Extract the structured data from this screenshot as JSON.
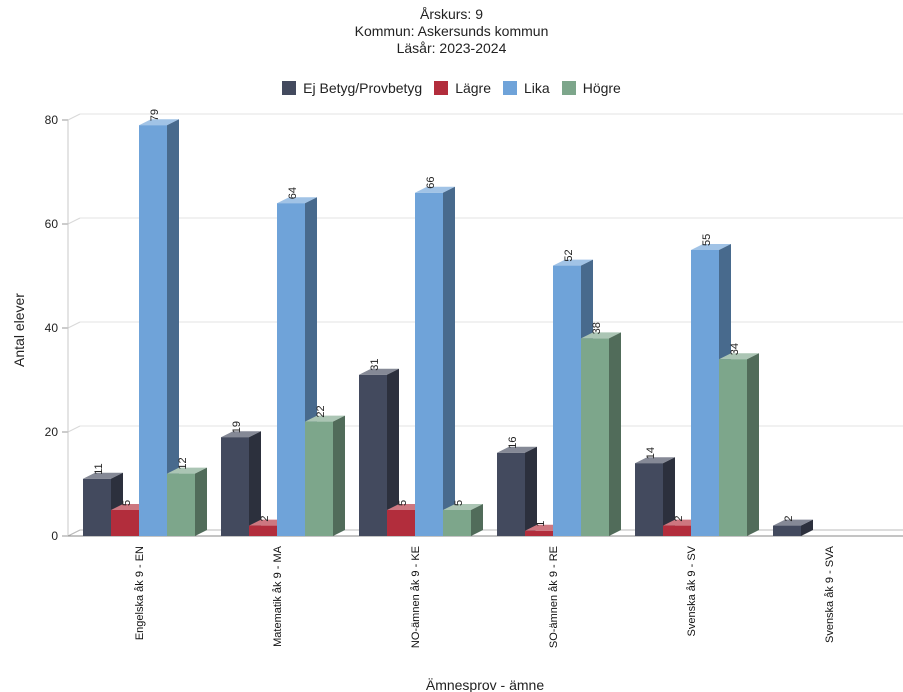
{
  "chart_data": {
    "type": "bar",
    "title_lines": [
      "Årskurs: 9",
      "Kommun: Askersunds kommun",
      "Läsår: 2023-2024"
    ],
    "xlabel": "Ämnesprov - ämne",
    "ylabel": "Antal elever",
    "ylim": [
      0,
      80
    ],
    "yticks": [
      0,
      20,
      40,
      60,
      80
    ],
    "grid": true,
    "legend_position": "top",
    "categories": [
      "Engelska åk 9 - EN",
      "Matematik åk 9 - MA",
      "NO-ämnen åk 9 - KE",
      "SO-ämnen åk 9 - RE",
      "Svenska åk 9 - SV",
      "Svenska åk 9 - SVA"
    ],
    "series": [
      {
        "name": "Ej Betyg/Provbetyg",
        "color": "#434a5e",
        "values": [
          11,
          19,
          31,
          16,
          14,
          2
        ]
      },
      {
        "name": "Lägre",
        "color": "#b22d3c",
        "values": [
          5,
          2,
          5,
          1,
          2,
          null
        ]
      },
      {
        "name": "Lika",
        "color": "#6fa3d9",
        "values": [
          79,
          64,
          66,
          52,
          55,
          null
        ]
      },
      {
        "name": "Högre",
        "color": "#7da68b",
        "values": [
          12,
          22,
          5,
          38,
          34,
          null
        ]
      }
    ]
  }
}
